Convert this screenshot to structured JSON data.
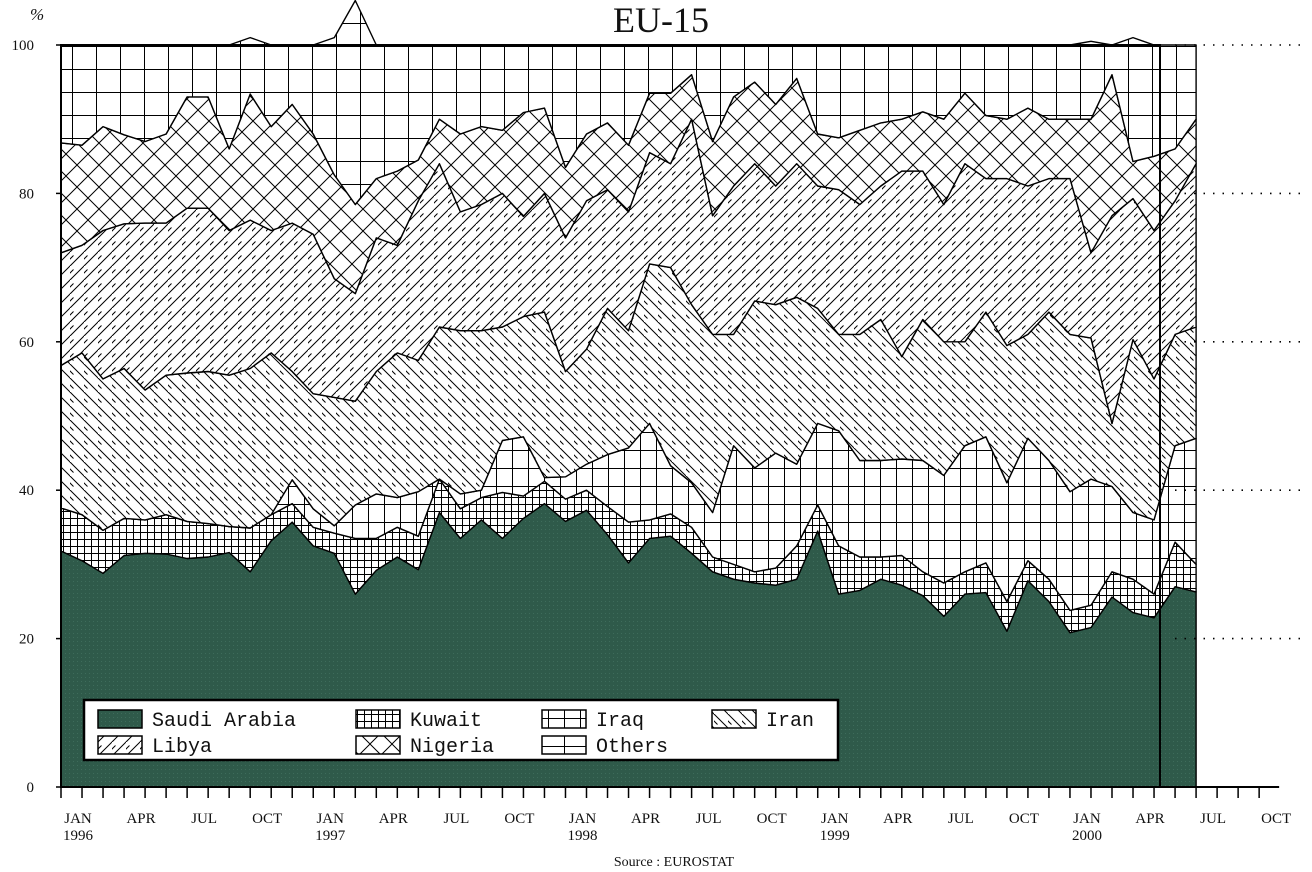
{
  "chart_data": {
    "type": "area",
    "stacked": true,
    "title": "EU-15",
    "ylabel": "%",
    "ylim": [
      0,
      100
    ],
    "yticks": [
      0,
      20,
      40,
      60,
      80,
      100
    ],
    "source": "Source : EUROSTAT",
    "x_start": "1996-01",
    "x_end": "2000-10",
    "x_tick_labels": [
      {
        "month": 0,
        "label": "JAN",
        "sub": "1996"
      },
      {
        "month": 3,
        "label": "APR",
        "sub": ""
      },
      {
        "month": 6,
        "label": "JUL",
        "sub": ""
      },
      {
        "month": 9,
        "label": "OCT",
        "sub": ""
      },
      {
        "month": 12,
        "label": "JAN",
        "sub": "1997"
      },
      {
        "month": 15,
        "label": "APR",
        "sub": ""
      },
      {
        "month": 18,
        "label": "JUL",
        "sub": ""
      },
      {
        "month": 21,
        "label": "OCT",
        "sub": ""
      },
      {
        "month": 24,
        "label": "JAN",
        "sub": "1998"
      },
      {
        "month": 27,
        "label": "APR",
        "sub": ""
      },
      {
        "month": 30,
        "label": "JUL",
        "sub": ""
      },
      {
        "month": 33,
        "label": "OCT",
        "sub": ""
      },
      {
        "month": 36,
        "label": "JAN",
        "sub": "1999"
      },
      {
        "month": 39,
        "label": "APR",
        "sub": ""
      },
      {
        "month": 42,
        "label": "JUL",
        "sub": ""
      },
      {
        "month": 45,
        "label": "OCT",
        "sub": ""
      },
      {
        "month": 48,
        "label": "JAN",
        "sub": "2000"
      },
      {
        "month": 51,
        "label": "APR",
        "sub": ""
      },
      {
        "month": 54,
        "label": "JUL",
        "sub": ""
      },
      {
        "month": 57,
        "label": "OCT",
        "sub": ""
      }
    ],
    "legend_position": "bottom-left",
    "series": [
      {
        "name": "Saudi Arabia",
        "pattern": "solid",
        "color": "#2f5a4a",
        "values": [
          31.8,
          30.5,
          28.8,
          31.2,
          31.5,
          31.4,
          30.8,
          31.0,
          31.6,
          29.0,
          33.2,
          35.7,
          32.5,
          31.5,
          26.0,
          29.2,
          31.0,
          29.3,
          37.0,
          33.5,
          36.0,
          33.5,
          36.2,
          38.2,
          35.8,
          37.3,
          34.0,
          30.2,
          33.5,
          33.8,
          31.5,
          29.0,
          28.0,
          27.5,
          27.2,
          28.0,
          34.5,
          26.0,
          26.5,
          28.0,
          27.2,
          25.8,
          23.0,
          26.0,
          26.2,
          21.0,
          27.8,
          25.0,
          20.8,
          21.5,
          25.6,
          23.5,
          22.8,
          27.0,
          26.3
        ]
      },
      {
        "name": "Kuwait",
        "pattern": "crosshatch-dense",
        "color": "#000000",
        "values": [
          5.8,
          6.2,
          5.8,
          5.0,
          4.5,
          5.3,
          5.0,
          4.5,
          3.5,
          5.9,
          3.5,
          2.5,
          2.5,
          2.7,
          7.5,
          4.3,
          4.0,
          4.5,
          4.5,
          4.0,
          3.0,
          6.2,
          3.0,
          3.0,
          3.0,
          2.7,
          3.8,
          5.5,
          2.5,
          3.0,
          3.5,
          2.0,
          2.0,
          1.5,
          2.3,
          4.5,
          3.5,
          6.5,
          4.5,
          3.0,
          4.0,
          3.2,
          4.5,
          3.0,
          4.0,
          4.0,
          2.7,
          3.0,
          3.0,
          3.0,
          3.4,
          4.5,
          3.2,
          6.0,
          3.7
        ]
      },
      {
        "name": "Iraq",
        "pattern": "vertical-grid",
        "color": "#000000",
        "values": [
          0.0,
          0.0,
          0.0,
          0.0,
          0.0,
          0.0,
          0.0,
          0.0,
          0.0,
          0.0,
          0.0,
          3.2,
          2.5,
          1.0,
          4.5,
          6.0,
          4.0,
          6.0,
          0.0,
          2.0,
          1.0,
          7.0,
          8.0,
          0.5,
          3.0,
          3.5,
          7.0,
          10.0,
          13.0,
          6.5,
          6.0,
          6.0,
          16.0,
          14.0,
          15.5,
          11.0,
          11.0,
          15.5,
          13.0,
          13.0,
          13.0,
          15.0,
          14.5,
          17.0,
          17.0,
          16.0,
          16.5,
          16.0,
          16.0,
          17.0,
          11.5,
          9.0,
          10.0,
          13.0,
          17.0
        ]
      },
      {
        "name": "Iran",
        "pattern": "diagonal-backslash",
        "color": "#000000",
        "values": [
          19.2,
          21.8,
          20.4,
          20.2,
          17.5,
          18.8,
          20.0,
          20.5,
          20.4,
          21.5,
          21.8,
          14.6,
          15.5,
          17.3,
          14.0,
          16.5,
          19.5,
          17.7,
          20.5,
          22.0,
          21.5,
          15.3,
          16.2,
          22.3,
          14.2,
          15.5,
          19.7,
          15.8,
          21.5,
          26.7,
          24.0,
          24.0,
          15.0,
          22.5,
          20.0,
          22.5,
          15.5,
          13.0,
          17.0,
          19.0,
          13.8,
          19.0,
          18.0,
          14.0,
          16.8,
          18.5,
          14.0,
          20.0,
          21.2,
          19.0,
          8.5,
          23.3,
          19.0,
          15.0,
          15.0
        ]
      },
      {
        "name": "Libya",
        "pattern": "diagonal-slash",
        "color": "#000000",
        "values": [
          15.2,
          14.5,
          20.0,
          19.5,
          22.5,
          20.5,
          22.2,
          22.0,
          19.5,
          20.0,
          16.5,
          20.0,
          21.5,
          16.0,
          14.5,
          18.0,
          14.5,
          21.5,
          22.0,
          16.0,
          17.0,
          18.0,
          13.5,
          16.0,
          18.0,
          20.0,
          16.0,
          16.0,
          15.0,
          14.0,
          25.0,
          16.0,
          20.0,
          18.5,
          16.0,
          18.0,
          16.5,
          19.5,
          17.5,
          18.0,
          25.0,
          20.0,
          18.5,
          24.0,
          18.0,
          22.5,
          20.0,
          18.0,
          21.0,
          11.5,
          28.0,
          19.0,
          20.0,
          18.0,
          22.0
        ]
      },
      {
        "name": "Nigeria",
        "pattern": "diamond-crosshatch",
        "color": "#000000",
        "values": [
          14.8,
          13.5,
          14.0,
          12.0,
          11.0,
          12.0,
          15.0,
          15.0,
          11.0,
          17.0,
          14.0,
          16.0,
          13.5,
          14.0,
          12.0,
          8.0,
          10.0,
          5.5,
          6.0,
          10.5,
          10.5,
          8.5,
          14.0,
          11.5,
          9.5,
          9.0,
          9.0,
          9.0,
          8.0,
          9.5,
          6.0,
          10.0,
          12.0,
          11.0,
          11.0,
          11.5,
          7.0,
          7.0,
          10.0,
          8.5,
          7.0,
          8.0,
          11.5,
          9.5,
          8.5,
          8.0,
          10.5,
          8.0,
          8.0,
          18.0,
          19.0,
          5.0,
          10.0,
          7.0,
          6.0
        ]
      },
      {
        "name": "Others",
        "pattern": "grid",
        "color": "#000000",
        "values": [
          13.2,
          13.5,
          11.0,
          12.1,
          13.0,
          12.0,
          7.0,
          7.0,
          14.0,
          7.6,
          11.0,
          8.0,
          12.0,
          18.5,
          27.5,
          18.0,
          17.0,
          15.5,
          10.0,
          12.0,
          11.0,
          11.5,
          9.1,
          8.5,
          16.5,
          12.0,
          10.5,
          13.5,
          6.5,
          6.5,
          4.0,
          13.0,
          7.0,
          5.0,
          8.0,
          4.5,
          12.0,
          12.5,
          11.5,
          10.5,
          10.0,
          9.0,
          10.0,
          6.5,
          9.5,
          10.0,
          8.5,
          10.0,
          10.0,
          10.5,
          4.0,
          16.7,
          15.0,
          14.0,
          10.0
        ]
      }
    ]
  }
}
